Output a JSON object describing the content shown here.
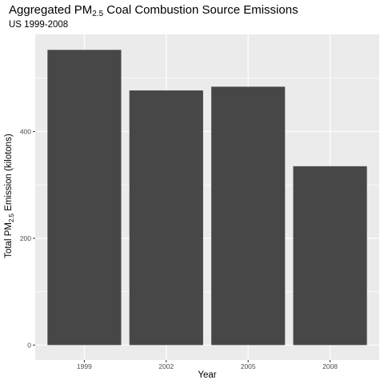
{
  "chart_data": {
    "type": "bar",
    "title": "Aggregated PM",
    "title_subscript": "2.5",
    "title_suffix": " Coal Combustion Source Emissions",
    "subtitle": "US 1999-2008",
    "xlabel": "Year",
    "ylabel": "Total PM",
    "ylabel_subscript": "2.5",
    "ylabel_suffix": " Emission (kilotons)",
    "categories": [
      "1999",
      "2002",
      "2005",
      "2008"
    ],
    "values": [
      553,
      477,
      484,
      335
    ],
    "ylim": [
      -28,
      582
    ],
    "yticks": [
      0,
      200,
      400
    ],
    "grid": true,
    "legend": "none",
    "colors": {
      "bar": "#474747",
      "panel": "#ebebeb",
      "grid": "#ffffff"
    }
  }
}
